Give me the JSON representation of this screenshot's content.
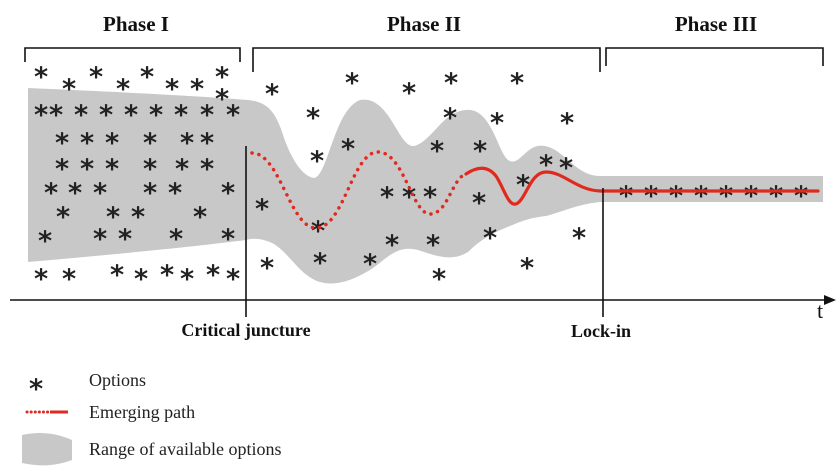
{
  "phases": [
    {
      "label": "Phase I"
    },
    {
      "label": "Phase II"
    },
    {
      "label": "Phase III"
    }
  ],
  "markers": {
    "critical_juncture": "Critical juncture",
    "lock_in": "Lock-in"
  },
  "axis": {
    "time_label": "t"
  },
  "legend": {
    "options": "Options",
    "emerging_path": "Emerging path",
    "range": "Range of available options"
  },
  "colors": {
    "range_fill": "#c8c8c8",
    "path": "#e02a1e",
    "ink": "#111111"
  },
  "option_symbol": "*"
}
